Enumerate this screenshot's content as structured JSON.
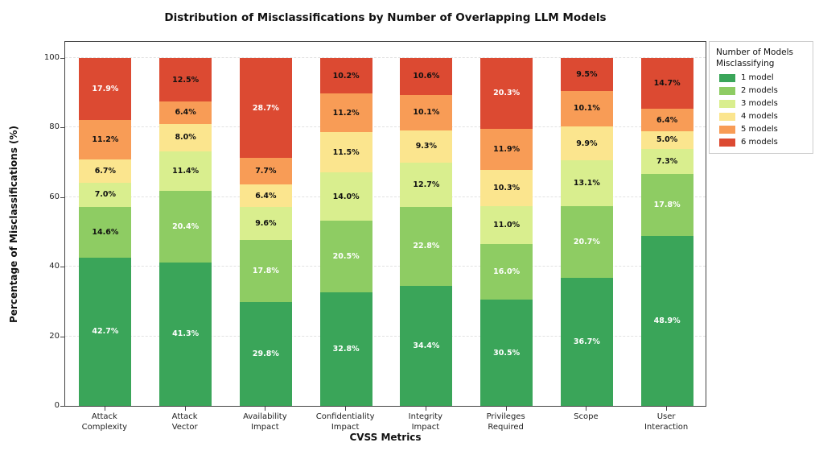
{
  "chart_data": {
    "type": "bar",
    "stacked": true,
    "title": "Distribution of Misclassifications by Number of Overlapping LLM Models",
    "xlabel": "CVSS Metrics",
    "ylabel": "Percentage of Misclassifications (%)",
    "ylim": [
      0,
      100
    ],
    "yticks": [
      0,
      20,
      40,
      60,
      80,
      100
    ],
    "grid": "horizontal-dashed",
    "value_suffix": "%",
    "label_white_threshold": 15,
    "categories": [
      "Attack\nComplexity",
      "Attack\nVector",
      "Availability\nImpact",
      "Confidentiality\nImpact",
      "Integrity\nImpact",
      "Privileges\nRequired",
      "Scope",
      "User\nInteraction"
    ],
    "series": [
      {
        "name": "1 model",
        "color": "#3aa559",
        "values": [
          42.7,
          41.3,
          29.8,
          32.8,
          34.4,
          30.5,
          36.7,
          48.9
        ]
      },
      {
        "name": "2 models",
        "color": "#8ecc63",
        "values": [
          14.6,
          20.4,
          17.8,
          20.5,
          22.8,
          16.0,
          20.7,
          17.8
        ]
      },
      {
        "name": "3 models",
        "color": "#d9ee8e",
        "values": [
          7.0,
          11.4,
          9.6,
          14.0,
          12.7,
          11.0,
          13.1,
          7.3
        ]
      },
      {
        "name": "4 models",
        "color": "#fbe58e",
        "values": [
          6.7,
          8.0,
          6.4,
          11.5,
          9.3,
          10.3,
          9.9,
          5.0
        ]
      },
      {
        "name": "5 models",
        "color": "#f89c56",
        "values": [
          11.2,
          6.4,
          7.7,
          11.2,
          10.1,
          11.9,
          10.1,
          6.4
        ]
      },
      {
        "name": "6 models",
        "color": "#dc4a32",
        "values": [
          17.9,
          12.5,
          28.7,
          10.2,
          10.6,
          20.3,
          9.5,
          14.7
        ]
      }
    ],
    "legend": {
      "title_line1": "Number of Models",
      "title_line2": "Misclassifying",
      "position": "outside-upper-right"
    }
  }
}
